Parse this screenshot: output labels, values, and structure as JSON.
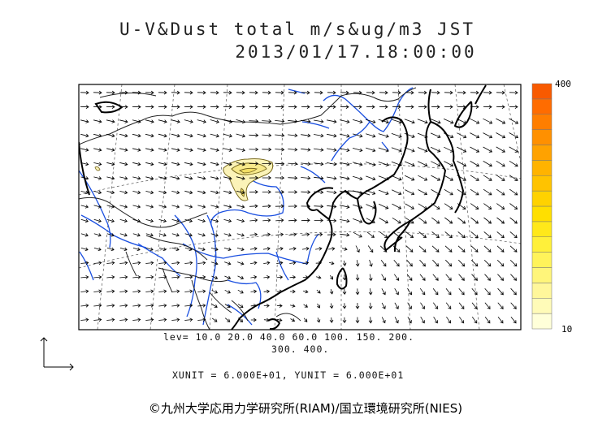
{
  "chart_data": {
    "type": "heatmap",
    "title": "U-V&Dust total m/s&ug/m3 JST",
    "subtitle": "2013/01/17.18:00:00",
    "levels": [
      10,
      20,
      40,
      60,
      100,
      150,
      200,
      300,
      400
    ],
    "colorbar": {
      "min_label": "10",
      "max_label": "400",
      "colors": [
        "#ffffd9",
        "#fffbb8",
        "#fff79b",
        "#fff57a",
        "#fff35a",
        "#fff03a",
        "#ffe81a",
        "#ffdf00",
        "#ffd200",
        "#ffc300",
        "#ffb300",
        "#ffa200",
        "#ff9000",
        "#ff7e00",
        "#ff6c00",
        "#f85a00"
      ]
    },
    "levels_text_line1": "lev= 10.0 20.0 40.0 60.0 100. 150. 200.",
    "levels_text_line2": "300. 400.",
    "units_text": "XUNIT = 6.000E+01, YUNIT = 6.000E+01"
  },
  "copyright": "©九州大学応用力学研究所(RIAM)/国立環境研究所(NIES)"
}
